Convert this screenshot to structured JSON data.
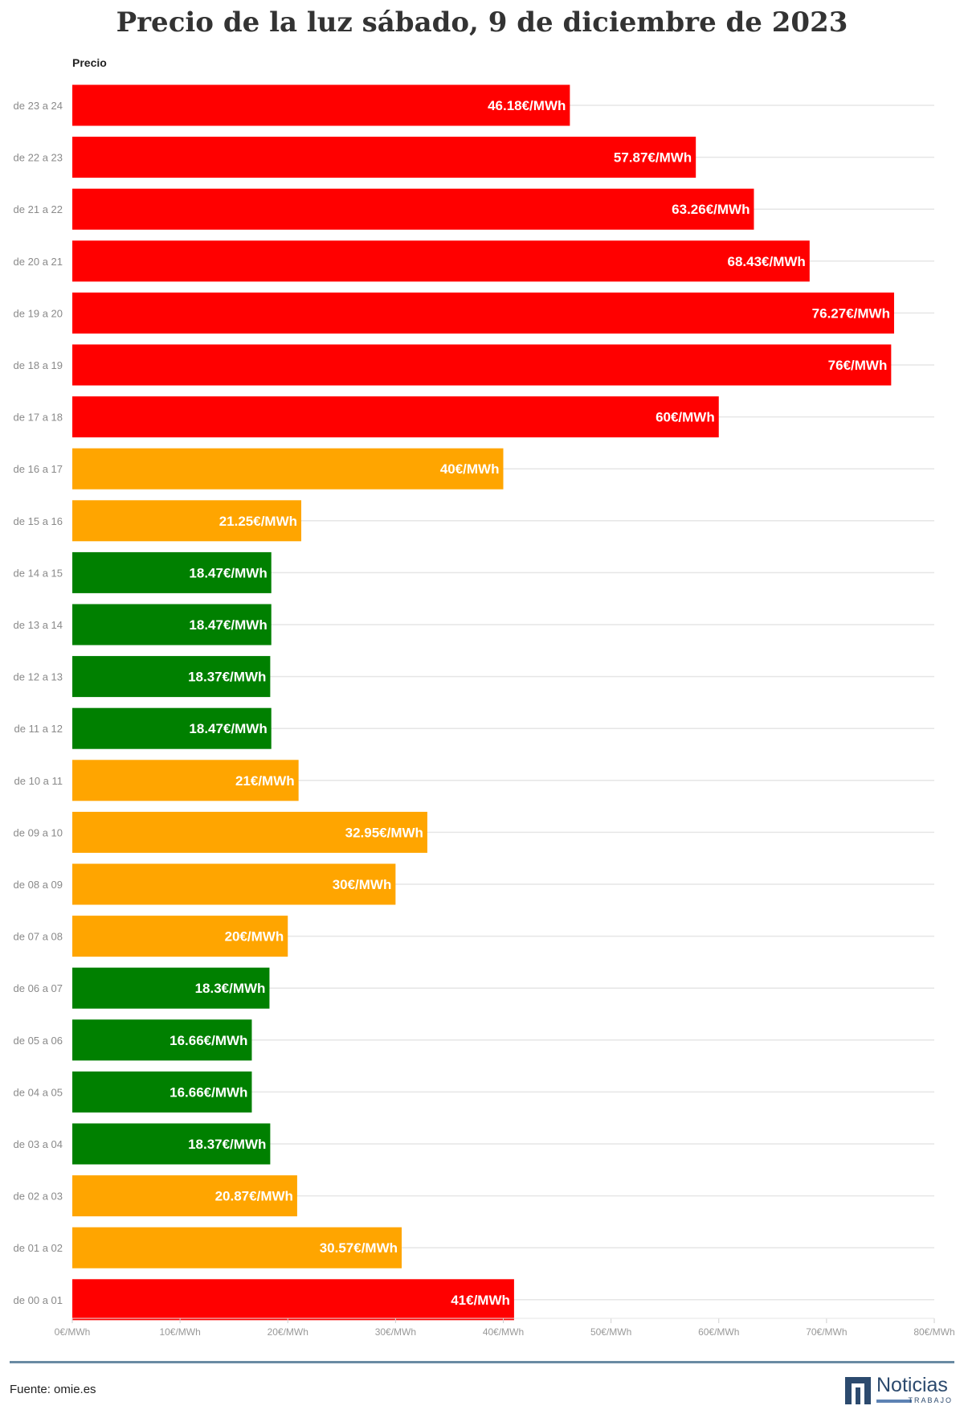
{
  "chart_data": {
    "type": "bar",
    "orientation": "horizontal",
    "title": "Precio de la luz sábado, 9 de diciembre de 2023",
    "legend_title": "Precio",
    "xlim": [
      0,
      80
    ],
    "xticks": [
      "0€/MWh",
      "10€/MWh",
      "20€/MWh",
      "30€/MWh",
      "40€/MWh",
      "50€/MWh",
      "60€/MWh",
      "70€/MWh",
      "80€/MWh"
    ],
    "grid": true,
    "colors": {
      "high": "#ff0000",
      "medium": "#ffa500",
      "low": "#008000"
    },
    "bars": [
      {
        "category": "de 23 a 24",
        "value": 46.18,
        "label": "46.18€/MWh",
        "level": "high"
      },
      {
        "category": "de 22 a 23",
        "value": 57.87,
        "label": "57.87€/MWh",
        "level": "high"
      },
      {
        "category": "de 21 a 22",
        "value": 63.26,
        "label": "63.26€/MWh",
        "level": "high"
      },
      {
        "category": "de 20 a 21",
        "value": 68.43,
        "label": "68.43€/MWh",
        "level": "high"
      },
      {
        "category": "de 19 a 20",
        "value": 76.27,
        "label": "76.27€/MWh",
        "level": "high"
      },
      {
        "category": "de 18 a 19",
        "value": 76,
        "label": "76€/MWh",
        "level": "high"
      },
      {
        "category": "de 17 a 18",
        "value": 60,
        "label": "60€/MWh",
        "level": "high"
      },
      {
        "category": "de 16 a 17",
        "value": 40,
        "label": "40€/MWh",
        "level": "medium"
      },
      {
        "category": "de 15 a 16",
        "value": 21.25,
        "label": "21.25€/MWh",
        "level": "medium"
      },
      {
        "category": "de 14 a 15",
        "value": 18.47,
        "label": "18.47€/MWh",
        "level": "low"
      },
      {
        "category": "de 13 a 14",
        "value": 18.47,
        "label": "18.47€/MWh",
        "level": "low"
      },
      {
        "category": "de 12 a 13",
        "value": 18.37,
        "label": "18.37€/MWh",
        "level": "low"
      },
      {
        "category": "de 11 a 12",
        "value": 18.47,
        "label": "18.47€/MWh",
        "level": "low"
      },
      {
        "category": "de 10 a 11",
        "value": 21,
        "label": "21€/MWh",
        "level": "medium"
      },
      {
        "category": "de 09 a 10",
        "value": 32.95,
        "label": "32.95€/MWh",
        "level": "medium"
      },
      {
        "category": "de 08 a 09",
        "value": 30,
        "label": "30€/MWh",
        "level": "medium"
      },
      {
        "category": "de 07 a 08",
        "value": 20,
        "label": "20€/MWh",
        "level": "medium"
      },
      {
        "category": "de 06 a 07",
        "value": 18.3,
        "label": "18.3€/MWh",
        "level": "low"
      },
      {
        "category": "de 05 a 06",
        "value": 16.66,
        "label": "16.66€/MWh",
        "level": "low"
      },
      {
        "category": "de 04 a 05",
        "value": 16.66,
        "label": "16.66€/MWh",
        "level": "low"
      },
      {
        "category": "de 03 a 04",
        "value": 18.37,
        "label": "18.37€/MWh",
        "level": "low"
      },
      {
        "category": "de 02 a 03",
        "value": 20.87,
        "label": "20.87€/MWh",
        "level": "medium"
      },
      {
        "category": "de 01 a 02",
        "value": 30.57,
        "label": "30.57€/MWh",
        "level": "medium"
      },
      {
        "category": "de 00 a 01",
        "value": 41,
        "label": "41€/MWh",
        "level": "high"
      }
    ]
  },
  "footer": {
    "source": "Fuente: omie.es",
    "logo_text": "Noticias",
    "logo_subtext": "TRABAJO"
  }
}
